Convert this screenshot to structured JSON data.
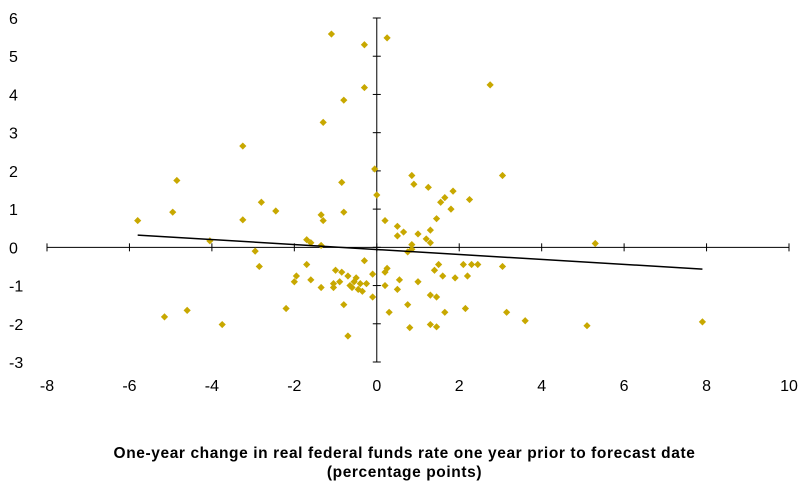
{
  "chart_data": {
    "type": "scatter",
    "title": "",
    "xlabel_line1": "One-year change in real federal funds rate one year prior to forecast date",
    "xlabel_line2": "(percentage points)",
    "ylabel": "",
    "xlim": [
      -8,
      10
    ],
    "ylim": [
      -3,
      6
    ],
    "xticks": [
      -8,
      -6,
      -4,
      -2,
      0,
      2,
      4,
      6,
      8,
      10
    ],
    "yticks": [
      -3,
      -2,
      -1,
      0,
      1,
      2,
      3,
      4,
      5,
      6
    ],
    "grid": false,
    "legend": "none",
    "marker_color": "#c8a800",
    "trendline_color": "#000000",
    "trendline": {
      "x": [
        -5.8,
        7.9
      ],
      "y": [
        0.32,
        -0.57
      ]
    },
    "points": [
      {
        "x": -1.1,
        "y": 5.58
      },
      {
        "x": -0.3,
        "y": 5.3
      },
      {
        "x": 0.25,
        "y": 5.48
      },
      {
        "x": -0.3,
        "y": 4.18
      },
      {
        "x": 2.75,
        "y": 4.25
      },
      {
        "x": -0.8,
        "y": 3.85
      },
      {
        "x": -1.3,
        "y": 3.27
      },
      {
        "x": -3.25,
        "y": 2.65
      },
      {
        "x": -0.05,
        "y": 2.05
      },
      {
        "x": 0.85,
        "y": 1.88
      },
      {
        "x": 3.05,
        "y": 1.88
      },
      {
        "x": -4.85,
        "y": 1.75
      },
      {
        "x": -0.85,
        "y": 1.7
      },
      {
        "x": 0.9,
        "y": 1.65
      },
      {
        "x": 1.25,
        "y": 1.57
      },
      {
        "x": 1.85,
        "y": 1.47
      },
      {
        "x": 1.65,
        "y": 1.3
      },
      {
        "x": 0.0,
        "y": 1.37
      },
      {
        "x": 2.25,
        "y": 1.25
      },
      {
        "x": 1.55,
        "y": 1.18
      },
      {
        "x": -2.8,
        "y": 1.18
      },
      {
        "x": 1.8,
        "y": 1.0
      },
      {
        "x": -2.45,
        "y": 0.95
      },
      {
        "x": -0.8,
        "y": 0.92
      },
      {
        "x": -4.95,
        "y": 0.92
      },
      {
        "x": -1.35,
        "y": 0.85
      },
      {
        "x": 1.45,
        "y": 0.75
      },
      {
        "x": -3.25,
        "y": 0.72
      },
      {
        "x": -1.3,
        "y": 0.7
      },
      {
        "x": 0.2,
        "y": 0.7
      },
      {
        "x": -5.8,
        "y": 0.7
      },
      {
        "x": 0.5,
        "y": 0.55
      },
      {
        "x": 1.3,
        "y": 0.45
      },
      {
        "x": 0.65,
        "y": 0.4
      },
      {
        "x": 1.0,
        "y": 0.35
      },
      {
        "x": 0.5,
        "y": 0.3
      },
      {
        "x": 1.2,
        "y": 0.22
      },
      {
        "x": 1.3,
        "y": 0.12
      },
      {
        "x": -1.7,
        "y": 0.2
      },
      {
        "x": -4.05,
        "y": 0.17
      },
      {
        "x": -1.6,
        "y": 0.12
      },
      {
        "x": 0.85,
        "y": 0.07
      },
      {
        "x": 5.3,
        "y": 0.1
      },
      {
        "x": -1.35,
        "y": 0.05
      },
      {
        "x": 0.85,
        "y": -0.05
      },
      {
        "x": -2.95,
        "y": -0.1
      },
      {
        "x": 0.75,
        "y": -0.12
      },
      {
        "x": -0.3,
        "y": -0.35
      },
      {
        "x": 1.5,
        "y": -0.45
      },
      {
        "x": 2.1,
        "y": -0.45
      },
      {
        "x": 2.3,
        "y": -0.45
      },
      {
        "x": 2.45,
        "y": -0.45
      },
      {
        "x": 3.05,
        "y": -0.5
      },
      {
        "x": -1.7,
        "y": -0.45
      },
      {
        "x": -2.85,
        "y": -0.5
      },
      {
        "x": 0.25,
        "y": -0.55
      },
      {
        "x": 1.4,
        "y": -0.6
      },
      {
        "x": -1.0,
        "y": -0.6
      },
      {
        "x": -0.85,
        "y": -0.65
      },
      {
        "x": 0.2,
        "y": -0.65
      },
      {
        "x": -0.1,
        "y": -0.7
      },
      {
        "x": 1.6,
        "y": -0.75
      },
      {
        "x": 2.2,
        "y": -0.75
      },
      {
        "x": -0.7,
        "y": -0.75
      },
      {
        "x": -1.95,
        "y": -0.75
      },
      {
        "x": 1.9,
        "y": -0.8
      },
      {
        "x": -0.5,
        "y": -0.8
      },
      {
        "x": -1.6,
        "y": -0.85
      },
      {
        "x": 0.55,
        "y": -0.85
      },
      {
        "x": 1.0,
        "y": -0.9
      },
      {
        "x": -2.0,
        "y": -0.9
      },
      {
        "x": -0.9,
        "y": -0.9
      },
      {
        "x": -0.55,
        "y": -0.9
      },
      {
        "x": -0.4,
        "y": -0.95
      },
      {
        "x": -0.25,
        "y": -0.95
      },
      {
        "x": -1.05,
        "y": -0.95
      },
      {
        "x": -0.65,
        "y": -1.0
      },
      {
        "x": 0.2,
        "y": -1.0
      },
      {
        "x": -1.35,
        "y": -1.05
      },
      {
        "x": -1.05,
        "y": -1.05
      },
      {
        "x": -0.6,
        "y": -1.05
      },
      {
        "x": -0.45,
        "y": -1.1
      },
      {
        "x": 0.5,
        "y": -1.1
      },
      {
        "x": -0.35,
        "y": -1.15
      },
      {
        "x": 1.3,
        "y": -1.25
      },
      {
        "x": -0.1,
        "y": -1.3
      },
      {
        "x": 1.45,
        "y": -1.3
      },
      {
        "x": -0.8,
        "y": -1.5
      },
      {
        "x": 0.75,
        "y": -1.5
      },
      {
        "x": -2.2,
        "y": -1.6
      },
      {
        "x": 2.15,
        "y": -1.6
      },
      {
        "x": -4.6,
        "y": -1.65
      },
      {
        "x": 0.3,
        "y": -1.7
      },
      {
        "x": 1.65,
        "y": -1.7
      },
      {
        "x": 3.15,
        "y": -1.7
      },
      {
        "x": -5.15,
        "y": -1.82
      },
      {
        "x": 3.6,
        "y": -1.92
      },
      {
        "x": 7.9,
        "y": -1.95
      },
      {
        "x": -3.75,
        "y": -2.02
      },
      {
        "x": 1.3,
        "y": -2.02
      },
      {
        "x": 5.1,
        "y": -2.05
      },
      {
        "x": 1.45,
        "y": -2.08
      },
      {
        "x": 0.8,
        "y": -2.1
      },
      {
        "x": -0.7,
        "y": -2.32
      }
    ]
  }
}
